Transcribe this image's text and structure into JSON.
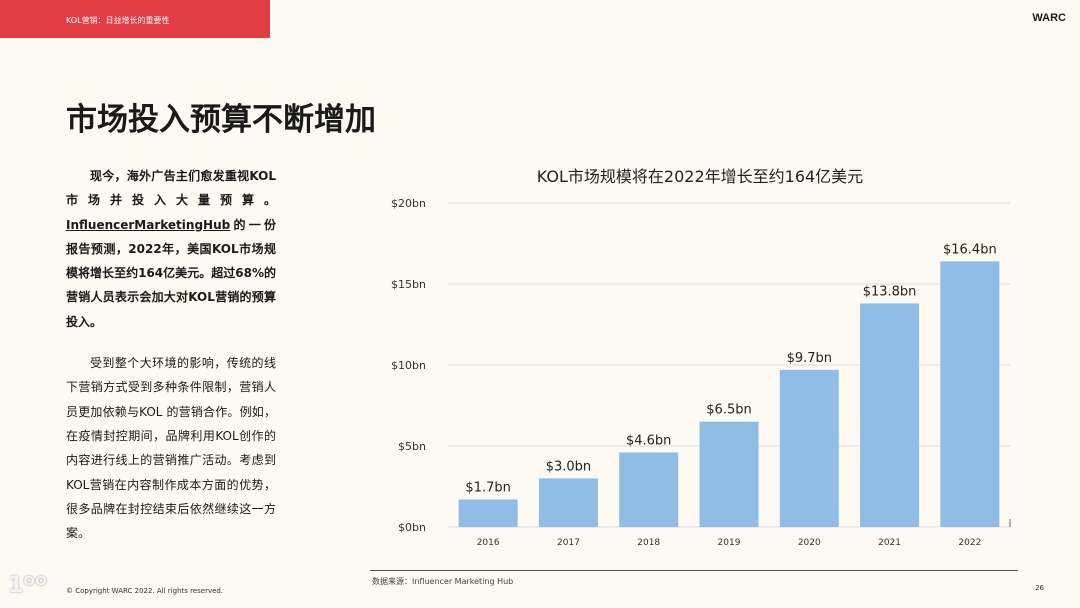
{
  "header": {
    "section": "KOL营销：日益增长的重要性",
    "brand": "WARC"
  },
  "title": "市场投入预算不断增加",
  "body": {
    "p1_a": "现今，海外广告主们愈发重视KOL市场并投入大量预算。",
    "p1_link": "InfluencerMarketingHub",
    "p1_b": "的一份报告预测，2022年，美国KOL市场规模将增长至约164亿美元。超过68%的营销人员表示会加大对KOL营销的预算投入。",
    "p2": "受到整个大环境的影响，传统的线下营销方式受到多种条件限制，营销人员更加依赖与KOL 的营销合作。例如，在疫情封控期间，品牌利用KOL创作的内容进行线上的营销推广活动。考虑到KOL营销在内容制作成本方面的优势，很多品牌在封控结束后依然继续这一方案。"
  },
  "chart_data": {
    "type": "bar",
    "title": "KOL市场规模将在2022年增长至约164亿美元",
    "categories": [
      "2016",
      "2017",
      "2018",
      "2019",
      "2020",
      "2021",
      "2022"
    ],
    "values": [
      1.7,
      3.0,
      4.6,
      6.5,
      9.7,
      13.8,
      16.4
    ],
    "data_labels": [
      "$1.7bn",
      "$3.0bn",
      "$4.6bn",
      "$6.5bn",
      "$9.7bn",
      "$13.8bn",
      "$16.4bn"
    ],
    "yticks": [
      "$0bn",
      "$5bn",
      "$10bn",
      "$15bn",
      "$20bn"
    ],
    "ylim": [
      0,
      20
    ],
    "grid": true,
    "bar_color": "#8fbde6"
  },
  "footer": {
    "source": "数据来源：Influencer Marketing Hub",
    "copyright": "© Copyright WARC 2022. All rights reserved.",
    "page": "26",
    "watermark": "大数跨境"
  }
}
